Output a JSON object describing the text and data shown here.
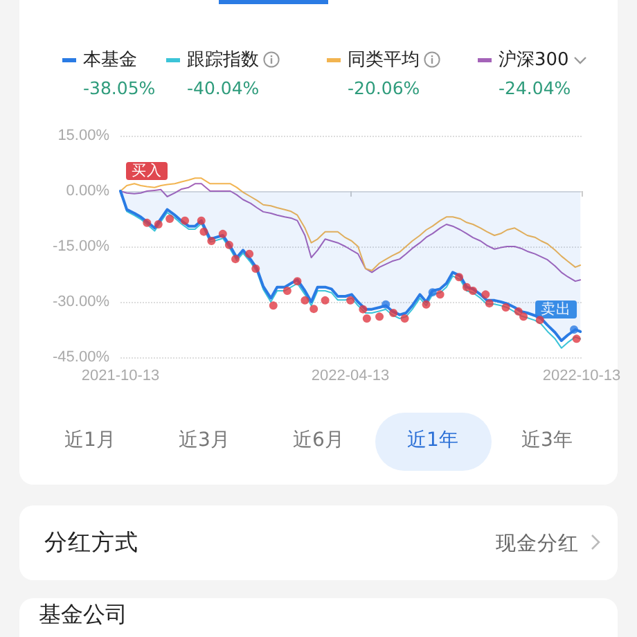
{
  "chart_data": {
    "type": "line",
    "x": [
      "2021-10-13",
      "2021-10-18",
      "2021-10-24",
      "2021-10-29",
      "2021-11-03",
      "2021-11-09",
      "2021-11-14",
      "2021-11-19",
      "2021-11-25",
      "2021-11-30",
      "2021-12-06",
      "2021-12-11",
      "2021-12-16",
      "2021-12-23",
      "2021-12-28",
      "2022-01-02",
      "2022-01-08",
      "2022-01-13",
      "2022-01-18",
      "2022-01-24",
      "2022-01-29",
      "2022-02-03",
      "2022-02-09",
      "2022-02-14",
      "2022-02-20",
      "2022-02-25",
      "2022-03-02",
      "2022-03-08",
      "2022-03-13",
      "2022-03-18",
      "2022-03-24",
      "2022-03-29",
      "2022-04-03",
      "2022-04-09",
      "2022-04-14",
      "2022-04-19",
      "2022-04-25",
      "2022-04-30",
      "2022-05-06",
      "2022-05-11",
      "2022-05-16",
      "2022-05-22",
      "2022-05-27",
      "2022-06-01",
      "2022-06-07",
      "2022-06-12",
      "2022-06-17",
      "2022-06-23",
      "2022-06-28",
      "2022-07-03",
      "2022-07-09",
      "2022-07-14",
      "2022-07-19",
      "2022-07-25",
      "2022-07-30",
      "2022-08-05",
      "2022-08-10",
      "2022-08-15",
      "2022-08-21",
      "2022-08-26",
      "2022-08-31",
      "2022-09-06",
      "2022-09-11",
      "2022-09-16",
      "2022-09-22",
      "2022-09-27",
      "2022-10-02",
      "2022-10-08",
      "2022-10-12"
    ],
    "series": [
      {
        "name": "本基金",
        "type": "area",
        "color": "#2a7be4",
        "values": [
          0,
          -5,
          -6,
          -7,
          -8.3,
          -10,
          -7.5,
          -5,
          -6.5,
          -8,
          -9.5,
          -9.5,
          -8,
          -13,
          -12.5,
          -12,
          -15,
          -18,
          -16,
          -18.5,
          -21,
          -25.8,
          -29,
          -26,
          -26,
          -25,
          -24,
          -27,
          -30,
          -26,
          -26,
          -26.5,
          -28.5,
          -28.5,
          -28,
          -30,
          -32,
          -32,
          -31.5,
          -31,
          -32.5,
          -33.5,
          -33,
          -31,
          -28,
          -30,
          -27,
          -26.5,
          -25,
          -22,
          -23,
          -26,
          -26.5,
          -28,
          -29.6,
          -29.6,
          -30,
          -30.5,
          -31.5,
          -32.6,
          -33,
          -33.7,
          -34.5,
          -36.3,
          -38.3,
          -40.5,
          -39,
          -37.5,
          -38.05
        ]
      },
      {
        "name": "跟踪指数",
        "color": "#3cc4d8",
        "values": [
          0,
          -5.5,
          -6.6,
          -7.6,
          -9,
          -10.8,
          -8.3,
          -5.8,
          -7.3,
          -8.8,
          -10.3,
          -10.3,
          -8.8,
          -13.8,
          -13.3,
          -12.8,
          -15.8,
          -18.8,
          -16.8,
          -19.3,
          -21.8,
          -26.6,
          -30,
          -27,
          -27,
          -26,
          -25,
          -28,
          -31,
          -27,
          -27,
          -27.5,
          -29.5,
          -29.5,
          -29,
          -31,
          -33,
          -33,
          -32.5,
          -32,
          -33.5,
          -34.5,
          -34,
          -32,
          -29,
          -31,
          -28,
          -27.5,
          -26,
          -23,
          -24,
          -27,
          -27.5,
          -29,
          -30.6,
          -30.6,
          -31,
          -31.5,
          -32.7,
          -33.8,
          -34.3,
          -35,
          -36,
          -38,
          -40,
          -42.5,
          -41,
          -39.5,
          -40.04
        ]
      },
      {
        "name": "同类平均",
        "color": "#f2b450",
        "values": [
          0,
          1.5,
          2,
          1.5,
          1.2,
          1,
          1.5,
          1.8,
          2,
          2.5,
          3,
          3.5,
          3.5,
          2,
          2,
          2,
          2,
          1,
          -0.3,
          -1.5,
          -2.5,
          -3.7,
          -4,
          -4.5,
          -5,
          -5.5,
          -6.5,
          -10,
          -14,
          -13,
          -11,
          -11,
          -11,
          -12.6,
          -13.5,
          -15,
          -21,
          -21.5,
          -19.5,
          -18.5,
          -17.5,
          -16.5,
          -15,
          -13.5,
          -12,
          -10.5,
          -9.5,
          -8,
          -7,
          -7,
          -7.5,
          -8.5,
          -9,
          -10,
          -11,
          -12,
          -11.5,
          -10.5,
          -10,
          -11,
          -12,
          -12.5,
          -13.5,
          -14.3,
          -16,
          -17.6,
          -19,
          -20.6,
          -20.06
        ]
      },
      {
        "name": "沪深300",
        "color": "#a463b8",
        "values": [
          0,
          -0.5,
          -0.7,
          -0.5,
          0,
          0.2,
          0.4,
          -1.5,
          -0.5,
          0.5,
          1,
          2,
          2,
          0,
          0,
          0,
          0,
          -1,
          -2.3,
          -3.3,
          -4.5,
          -5.6,
          -6,
          -6.5,
          -7,
          -7.3,
          -8,
          -12,
          -18,
          -16,
          -13,
          -13.5,
          -14,
          -15,
          -16,
          -17,
          -21,
          -22,
          -20.6,
          -19.8,
          -19,
          -18.4,
          -17,
          -15.5,
          -14,
          -12.5,
          -11.5,
          -10,
          -9,
          -9.5,
          -10.5,
          -11.5,
          -12.6,
          -13.5,
          -14.7,
          -15.7,
          -15.3,
          -15,
          -15,
          -15.5,
          -16.3,
          -17,
          -17.8,
          -18.6,
          -20.3,
          -22,
          -23.2,
          -24.4,
          -24.04
        ]
      },
      {
        "type": "scatter",
        "color": "#e03a44",
        "x": [
          "2021-11-03",
          "2021-11-12",
          "2021-11-21",
          "2021-12-03",
          "2021-12-16",
          "2021-12-18",
          "2021-12-24",
          "2022-01-02",
          "2022-01-07",
          "2022-01-12",
          "2022-01-23",
          "2022-01-28",
          "2022-02-11",
          "2022-02-22",
          "2022-03-02",
          "2022-03-08",
          "2022-03-15",
          "2022-03-24",
          "2022-04-13",
          "2022-04-23",
          "2022-04-26",
          "2022-05-06",
          "2022-05-17",
          "2022-05-26",
          "2022-06-12",
          "2022-06-23",
          "2022-07-08",
          "2022-07-14",
          "2022-07-19",
          "2022-07-29",
          "2022-08-01",
          "2022-08-14",
          "2022-08-24",
          "2022-08-28",
          "2022-09-10",
          "2022-10-09"
        ],
        "values": [
          -8.6,
          -9,
          -7.5,
          -8,
          -8,
          -11,
          -13.5,
          -11.6,
          -14.6,
          -18.4,
          -17,
          -21,
          -31,
          -27,
          -24.4,
          -29.6,
          -31.9,
          -29.6,
          -29.6,
          -32,
          -34.5,
          -34,
          -33,
          -34.5,
          -30.7,
          -28,
          -23.3,
          -26,
          -27,
          -28,
          -30.4,
          -31.5,
          -32.6,
          -34,
          -34.9,
          -40
        ]
      },
      {
        "type": "scatter",
        "color": "#2a7be4",
        "x": [
          "2022-05-11",
          "2022-06-17",
          "2022-10-07"
        ],
        "values": [
          -30.7,
          -27.4,
          -37.5
        ]
      }
    ],
    "xlim": [
      "2021-10-13",
      "2022-10-13"
    ],
    "xticks": [
      "2021-10-13",
      "2022-04-13",
      "2022-10-13"
    ],
    "ylim": [
      -45,
      15
    ],
    "yticks": [
      {
        "value": -45,
        "label": "-45.00%"
      },
      {
        "value": -30,
        "label": "-30.00%"
      },
      {
        "value": -15,
        "label": "-15.00%"
      },
      {
        "value": 0,
        "label": "0.00%"
      },
      {
        "value": 15,
        "label": "15.00%"
      }
    ],
    "grid": "y",
    "legend": "top",
    "annotations": [
      "-38.05%",
      "-40.04%",
      "-20.06%",
      "-24.04%",
      "近1月",
      "近3月",
      "近6月",
      "近1年",
      "近3年",
      "分红方式",
      "现金分红",
      "基金公司",
      {
        "text": "买入",
        "x": "2021-10-13",
        "y": 0
      },
      {
        "text": "卖出",
        "x": "2022-10-07",
        "y": -37.5
      }
    ]
  }
}
